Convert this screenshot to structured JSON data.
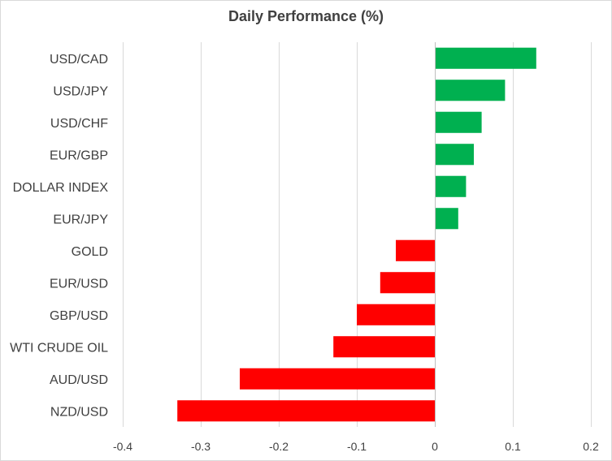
{
  "chart_data": {
    "type": "bar",
    "orientation": "horizontal",
    "title": "Daily Performance (%)",
    "xlabel": "",
    "ylabel": "",
    "categories": [
      "USD/CAD",
      "USD/JPY",
      "USD/CHF",
      "EUR/GBP",
      "DOLLAR INDEX",
      "EUR/JPY",
      "GOLD",
      "EUR/USD",
      "GBP/USD",
      "WTI CRUDE OIL",
      "AUD/USD",
      "NZD/USD"
    ],
    "values": [
      0.13,
      0.09,
      0.06,
      0.05,
      0.04,
      0.03,
      -0.05,
      -0.07,
      -0.1,
      -0.13,
      -0.25,
      -0.33
    ],
    "xlim": [
      -0.4,
      0.2
    ],
    "xticks": [
      -0.4,
      -0.3,
      -0.2,
      -0.1,
      0,
      0.1,
      0.2
    ],
    "xtick_labels": [
      "-0.4",
      "-0.3",
      "-0.2",
      "-0.1",
      "0",
      "0.1",
      "0.2"
    ],
    "grid": true,
    "legend": "none",
    "colors": {
      "positive": "#00b050",
      "negative": "#ff0000",
      "grid": "#d9d9d9",
      "text": "#404040"
    }
  }
}
